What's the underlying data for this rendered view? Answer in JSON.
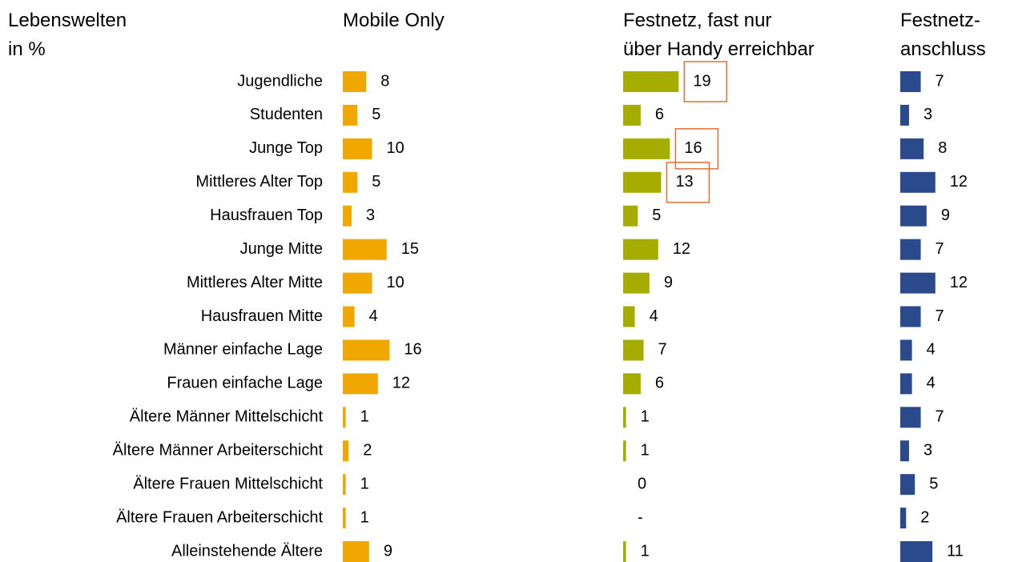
{
  "chart_data": {
    "type": "bar",
    "title": "Lebenswelten\nin %",
    "categories": [
      "Jugendliche",
      "Studenten",
      "Junge Top",
      "Mittleres Alter Top",
      "Hausfrauen Top",
      "Junge Mitte",
      "Mittleres Alter Mitte",
      "Hausfrauen Mitte",
      "Männer einfache Lage",
      "Frauen einfache Lage",
      "Ältere Männer Mittelschicht",
      "Ältere Männer Arbeiterschicht",
      "Ältere Frauen Mittelschicht",
      "Ältere Frauen Arbeiterschicht",
      "Alleinstehende Ältere"
    ],
    "series": [
      {
        "name": "Mobile Only",
        "color": "#f0a800",
        "values": [
          8,
          5,
          10,
          5,
          3,
          15,
          10,
          4,
          16,
          12,
          1,
          2,
          1,
          1,
          9
        ]
      },
      {
        "name": "Festnetz, fast nur\nüber Handy erreichbar",
        "color": "#a5ad00",
        "values": [
          19,
          6,
          16,
          13,
          5,
          12,
          9,
          4,
          7,
          6,
          1,
          1,
          0,
          null,
          1
        ],
        "value_labels": [
          "19",
          "6",
          "16",
          "13",
          "5",
          "12",
          "9",
          "4",
          "7",
          "6",
          "1",
          "1",
          "0",
          "-",
          "1"
        ],
        "highlighted": [
          0,
          2,
          3
        ],
        "highlight_color": "#e07030"
      },
      {
        "name": "Festnetz-\nanschluss",
        "color": "#2a4a8c",
        "values": [
          7,
          3,
          8,
          12,
          9,
          7,
          12,
          7,
          4,
          4,
          7,
          3,
          5,
          2,
          11
        ]
      }
    ]
  }
}
